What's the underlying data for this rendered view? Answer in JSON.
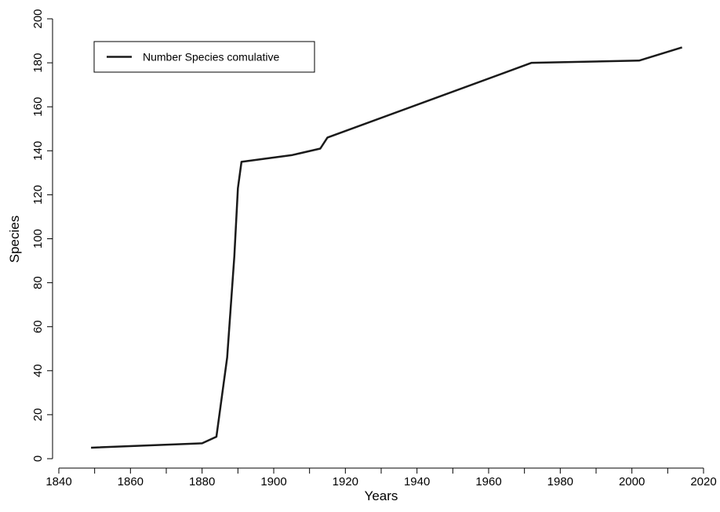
{
  "chart_data": {
    "type": "line",
    "x_label": "Years",
    "y_label": "Species",
    "x": [
      1849,
      1880,
      1884,
      1887,
      1889,
      1890,
      1891,
      1905,
      1913,
      1915,
      1972,
      2002,
      2014
    ],
    "series": [
      {
        "name": "Number Species comulative",
        "color": "#1a1a1a",
        "values": [
          5,
          7,
          10,
          46,
          92,
          123,
          135,
          138,
          141,
          146,
          180,
          181,
          187
        ]
      }
    ],
    "xlim": [
      1840,
      2020
    ],
    "xticks": [
      1840,
      1860,
      1880,
      1900,
      1920,
      1940,
      1960,
      1980,
      2000,
      2020
    ],
    "x_minor_ticks": [
      1850,
      1870,
      1890,
      1910,
      1930,
      1950,
      1970,
      1990,
      2010
    ],
    "ylim": [
      0,
      200
    ],
    "yticks": [
      0,
      20,
      40,
      60,
      80,
      100,
      120,
      140,
      160,
      180,
      200
    ],
    "grid": false,
    "legend": "upper left"
  }
}
